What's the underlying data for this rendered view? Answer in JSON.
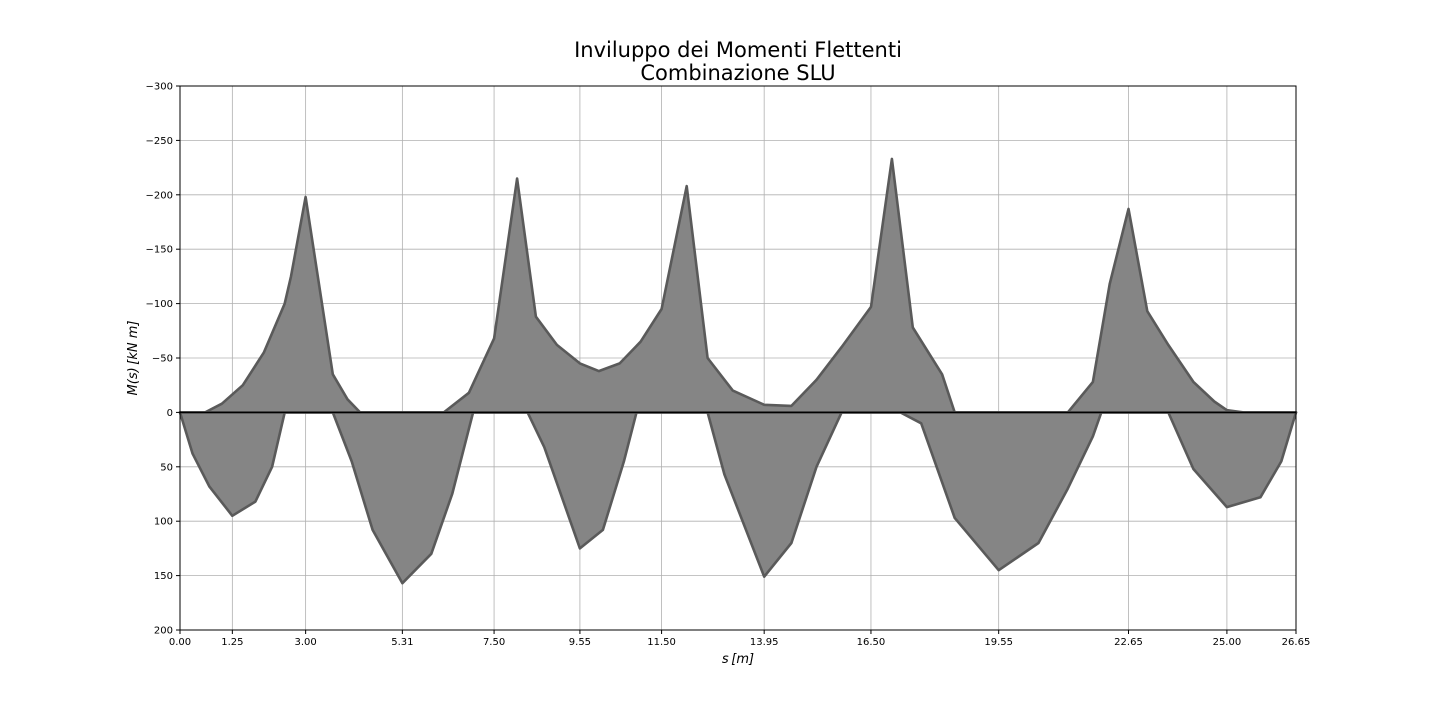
{
  "chart_data": {
    "type": "area",
    "title_lines": [
      "Inviluppo dei Momenti Flettenti",
      "Combinazione SLU"
    ],
    "xlabel": "s [m]",
    "ylabel": "M(s) [kN m]",
    "xlim": [
      0,
      26.65
    ],
    "ylim": [
      -300,
      200
    ],
    "y_inverted": true,
    "grid": true,
    "x_ticks": [
      0,
      1.25,
      3.0,
      5.31,
      7.5,
      9.55,
      11.5,
      13.95,
      16.5,
      19.55,
      22.65,
      25.0,
      26.65
    ],
    "x_tick_labels": [
      "0.00",
      "1.25",
      "3.00",
      "5.31",
      "7.50",
      "9.55",
      "11.50",
      "13.95",
      "16.50",
      "19.55",
      "22.65",
      "25.00",
      "26.65"
    ],
    "y_ticks": [
      -300,
      -250,
      -200,
      -150,
      -100,
      -50,
      0,
      50,
      100,
      150,
      200
    ],
    "y_tick_labels": [
      "−300",
      "−250",
      "−200",
      "−150",
      "−100",
      "−50",
      "0",
      "50",
      "100",
      "150",
      "200"
    ],
    "series": [
      {
        "role": "negative-moment-envelope",
        "x": [
          0,
          0.6,
          1.0,
          1.5,
          2.0,
          2.5,
          2.65,
          3.0,
          3.35,
          3.65,
          4.0,
          4.3,
          5.0,
          5.31,
          5.8,
          6.3,
          6.9,
          7.5,
          8.05,
          8.5,
          9.0,
          9.55,
          10.0,
          10.5,
          11.0,
          11.5,
          12.1,
          12.6,
          13.2,
          13.95,
          14.6,
          15.2,
          15.8,
          16.5,
          17.0,
          17.5,
          18.2,
          18.5,
          19.55,
          20.5,
          21.2,
          21.8,
          22.2,
          22.65,
          23.1,
          23.6,
          24.2,
          24.7,
          25.0,
          25.4,
          26.0,
          26.65
        ],
        "y": [
          0,
          0,
          -8,
          -25,
          -55,
          -100,
          -125,
          -198,
          -110,
          -35,
          -12,
          0,
          0,
          0,
          0,
          0,
          -18,
          -68,
          -215,
          -88,
          -62,
          -45,
          -38,
          -45,
          -65,
          -95,
          -208,
          -50,
          -20,
          -7,
          -6,
          -30,
          -60,
          -97,
          -233,
          -78,
          -35,
          0,
          0,
          0,
          0,
          -28,
          -118,
          -187,
          -93,
          -62,
          -28,
          -10,
          -2,
          0,
          0,
          0
        ]
      },
      {
        "role": "positive-moment-envelope",
        "x": [
          0,
          0.3,
          0.7,
          1.25,
          1.8,
          2.2,
          2.5,
          3.0,
          3.5,
          3.65,
          4.1,
          4.6,
          5.31,
          6.0,
          6.5,
          7.0,
          7.5,
          8.1,
          8.3,
          8.7,
          9.55,
          10.1,
          10.6,
          10.9,
          11.5,
          12.1,
          12.6,
          13.0,
          13.95,
          14.6,
          15.2,
          15.8,
          16.5,
          17.0,
          17.2,
          17.7,
          18.5,
          19.55,
          20.5,
          21.2,
          21.8,
          22.0,
          22.65,
          23.1,
          23.6,
          24.2,
          25.0,
          25.8,
          26.3,
          26.65
        ],
        "y": [
          0,
          38,
          68,
          95,
          82,
          50,
          0,
          0,
          0,
          0,
          45,
          108,
          157,
          130,
          75,
          0,
          0,
          0,
          0,
          32,
          125,
          108,
          45,
          0,
          0,
          0,
          0,
          57,
          151,
          120,
          50,
          0,
          0,
          0,
          0,
          10,
          97,
          145,
          120,
          70,
          22,
          0,
          0,
          0,
          0,
          52,
          87,
          78,
          45,
          0
        ]
      }
    ]
  }
}
